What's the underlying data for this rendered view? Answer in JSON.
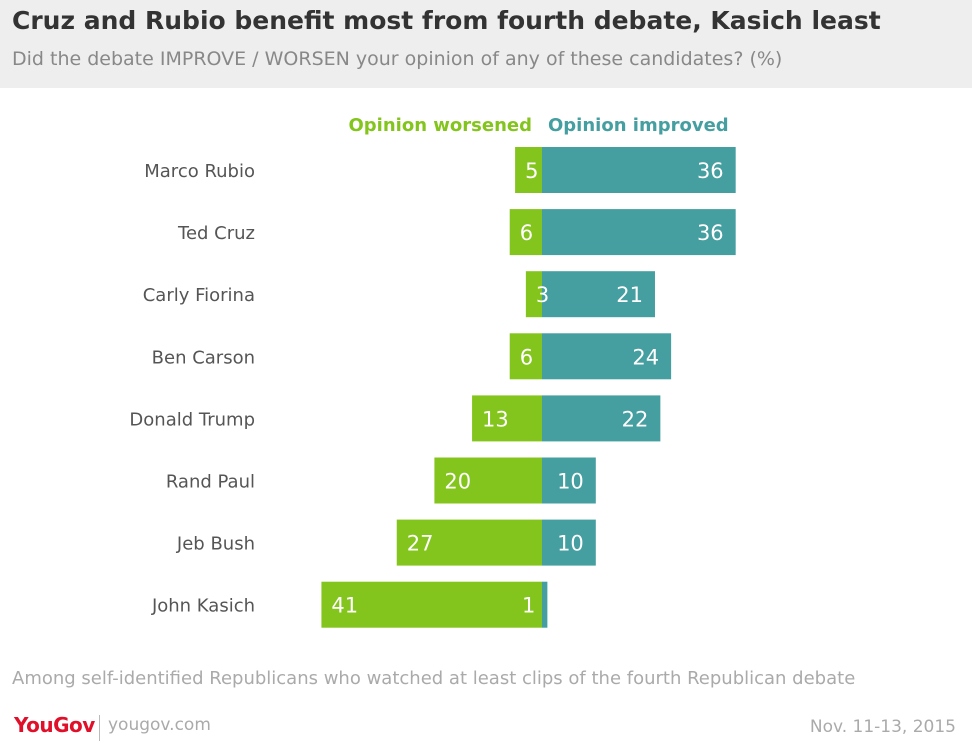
{
  "title": "Cruz and Rubio benefit most from fourth debate, Kasich least",
  "subtitle": "Did the debate IMPROVE / WORSEN your opinion of any of these candidates? (%)",
  "note": "Among self-identified Republicans who watched at least clips of the fourth Republican debate",
  "footer": {
    "logo": "YouGov",
    "site": "yougov.com",
    "date": "Nov. 11-13, 2015"
  },
  "colors": {
    "worsened": "#84c51d",
    "improved": "#459ea0",
    "label": "#555555",
    "value": "#ffffff"
  },
  "chart_data": {
    "type": "bar",
    "orientation": "horizontal-diverging",
    "categories": [
      "Marco Rubio",
      "Ted Cruz",
      "Carly Fiorina",
      "Ben Carson",
      "Donald Trump",
      "Rand Paul",
      "Jeb Bush",
      "John Kasich"
    ],
    "series": [
      {
        "name": "Opinion worsened",
        "values": [
          5,
          6,
          3,
          6,
          13,
          20,
          27,
          41
        ]
      },
      {
        "name": "Opinion improved",
        "values": [
          36,
          36,
          21,
          24,
          22,
          10,
          10,
          1
        ]
      }
    ],
    "grid": false,
    "legend": "top-center"
  }
}
